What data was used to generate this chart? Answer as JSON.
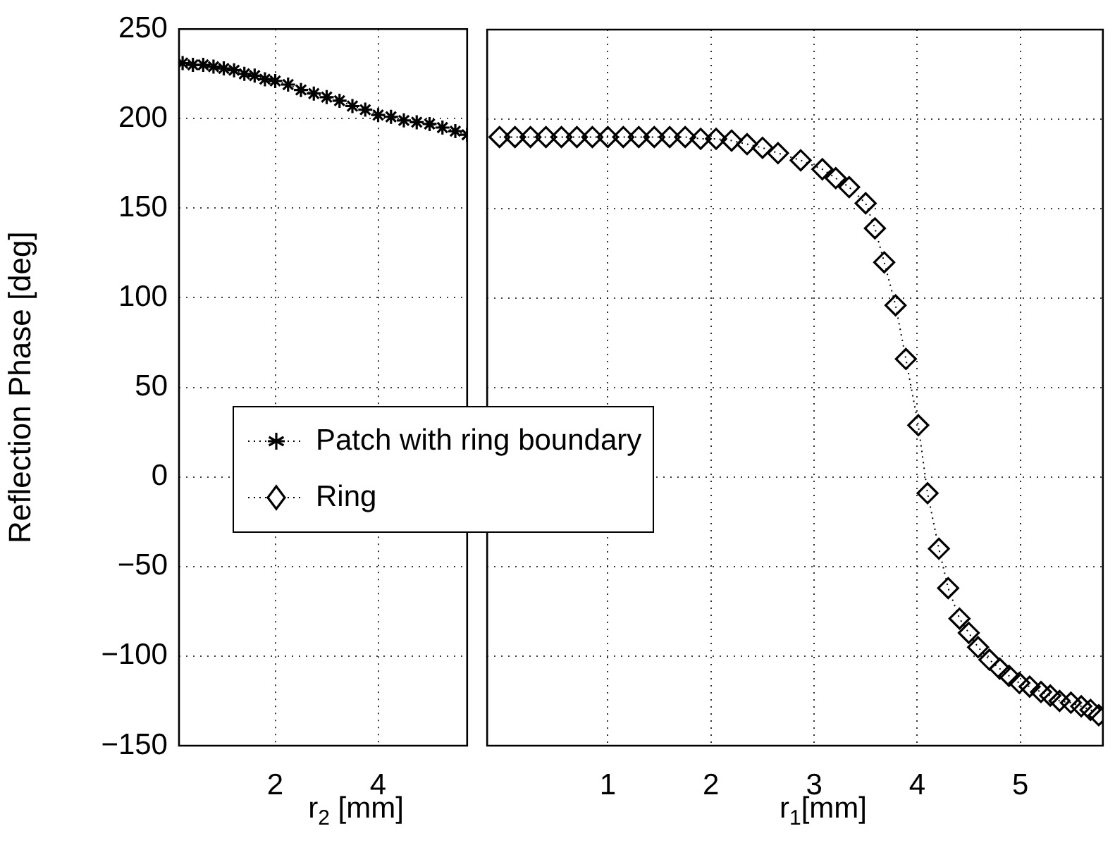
{
  "chart_data": [
    {
      "type": "line",
      "ylabel": "Reflection Phase [deg]",
      "xlabel": "r$_{2}$ [mm]",
      "xlim": [
        0.13,
        5.73
      ],
      "xticks": [
        2,
        4
      ],
      "ylim": [
        -150,
        250
      ],
      "yticks": [
        -150,
        -100,
        -50,
        0,
        50,
        100,
        150,
        200,
        250
      ],
      "grid": true,
      "legend": "bottom right",
      "line_style": "dotted",
      "marker": "cross",
      "series": [
        {
          "name": "Patch with ring boundary",
          "color": "#000000",
          "x": [
            0.2,
            0.4,
            0.6,
            0.8,
            1.0,
            1.2,
            1.4,
            1.6,
            1.8,
            2.0,
            2.25,
            2.5,
            2.75,
            3.0,
            3.25,
            3.5,
            3.75,
            4.0,
            4.25,
            4.5,
            4.75,
            5.0,
            5.25,
            5.5,
            5.73
          ],
          "values": [
            231,
            230,
            230,
            229,
            228,
            227,
            225,
            224,
            222,
            221,
            219,
            216,
            214,
            212,
            210,
            207,
            205,
            202,
            201,
            199,
            198,
            197,
            195,
            193,
            191
          ]
        }
      ]
    },
    {
      "type": "line",
      "xlabel": "r$_{1}$[mm]",
      "xlim": [
        -0.17,
        5.8
      ],
      "xticks": [
        1,
        2,
        3,
        4,
        5
      ],
      "ylim": [
        -150,
        250
      ],
      "yticks": [
        -150,
        -100,
        -50,
        0,
        50,
        100,
        150,
        200,
        250
      ],
      "tick_labels": "x",
      "grid": true,
      "legend": "left",
      "line_style": "dotted",
      "marker": "diamond",
      "series": [
        {
          "name": "Ring",
          "color": "#000000",
          "x": [
            -0.05,
            0.1,
            0.25,
            0.4,
            0.55,
            0.7,
            0.85,
            1.0,
            1.15,
            1.3,
            1.45,
            1.6,
            1.75,
            1.9,
            2.05,
            2.2,
            2.35,
            2.5,
            2.65,
            2.87,
            3.08,
            3.21,
            3.34,
            3.5,
            3.59,
            3.68,
            3.79,
            3.89,
            4.01,
            4.1,
            4.21,
            4.3,
            4.41,
            4.5,
            4.59,
            4.7,
            4.8,
            4.89,
            4.99,
            5.09,
            5.2,
            5.29,
            5.38,
            5.49,
            5.59,
            5.68,
            5.76
          ],
          "values": [
            190,
            190,
            190,
            190,
            190,
            190,
            190,
            190,
            190,
            190,
            190,
            190,
            190,
            189,
            189,
            188,
            186,
            184,
            181,
            177,
            172,
            167,
            162,
            153,
            139,
            120,
            96,
            66,
            29,
            -9,
            -40,
            -62,
            -79,
            -87,
            -95,
            -102,
            -107,
            -111,
            -115,
            -117,
            -120,
            -122,
            -125,
            -126,
            -128,
            -130,
            -133
          ]
        }
      ]
    }
  ]
}
